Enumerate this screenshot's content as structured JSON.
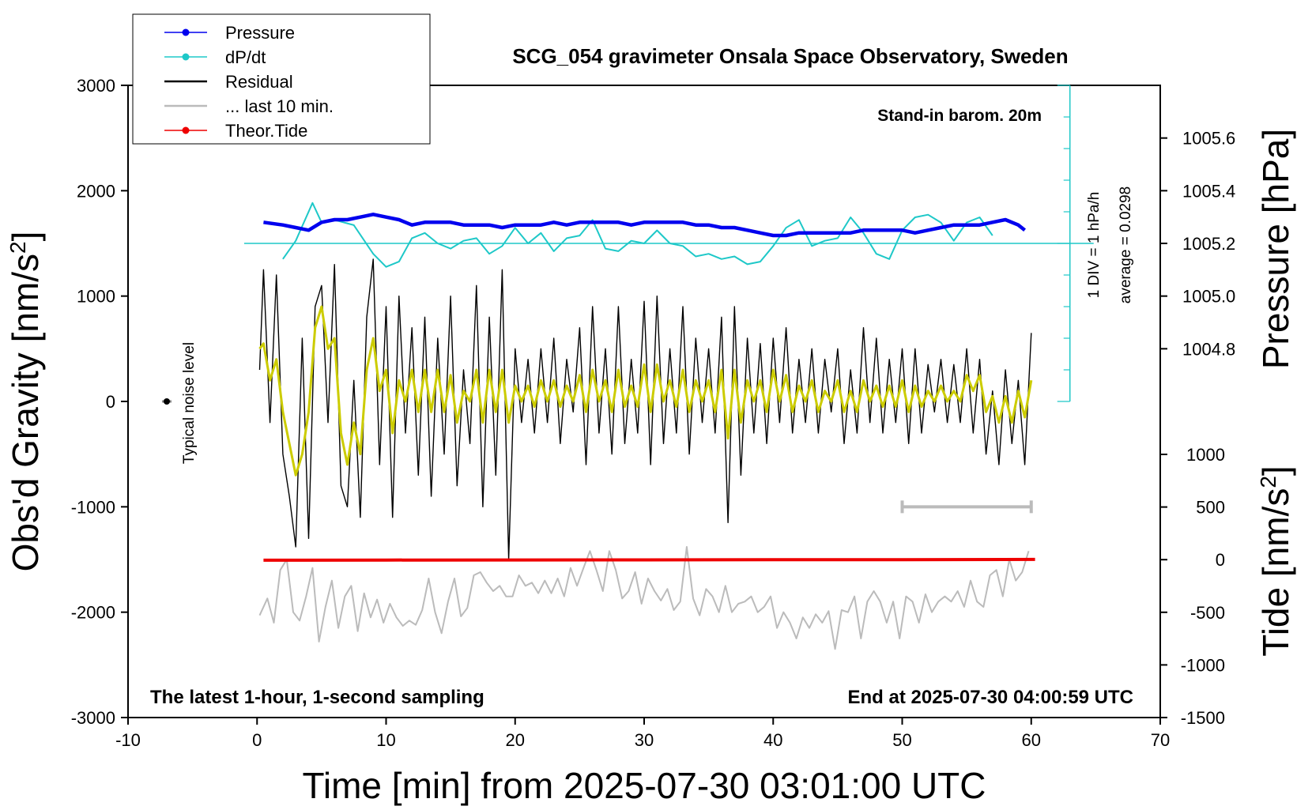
{
  "chart_data": {
    "type": "line",
    "title": "SCG_054 gravimeter Onsala Space Observatory, Sweden",
    "xlabel": "Time [min] from 2025-07-30 03:01:00 UTC",
    "ylabel_left": "Obs'd Gravity [nm/s",
    "ylabel_left_sup": "2",
    "ylabel_left_tail": "]",
    "ylabel_right_pressure": "Pressure [hPa]",
    "ylabel_right_tide": "Tide [nm/s",
    "ylabel_right_tide_sup": "2",
    "ylabel_right_tide_tail": "]",
    "xlim": [
      -10,
      70
    ],
    "ylim": [
      -3000,
      3000
    ],
    "x_ticks": [
      "-10",
      "0",
      "10",
      "20",
      "30",
      "40",
      "50",
      "60",
      "70"
    ],
    "y_ticks": [
      "-3000",
      "-2000",
      "-1000",
      "0",
      "1000",
      "2000",
      "3000"
    ],
    "pressure_ticks": [
      "1004.8",
      "1005.0",
      "1005.2",
      "1005.4",
      "1005.6"
    ],
    "pressure_lim": [
      1004.6,
      1005.8
    ],
    "tide_ticks": [
      "-1500",
      "-1000",
      "-500",
      "0",
      "500",
      "1000"
    ],
    "tide_lim": [
      -1500,
      1000
    ],
    "legend": {
      "placement": "top-left",
      "items": [
        {
          "label": "Pressure",
          "color": "#0000ee",
          "style": "dot-line"
        },
        {
          "label": "dP/dt",
          "color": "#1ec8c8",
          "style": "dot-line"
        },
        {
          "label": "Residual",
          "color": "#000000",
          "style": "line"
        },
        {
          "label": "... last 10 min.",
          "color": "#bbbbbb",
          "style": "line"
        },
        {
          "label": "Theor.Tide",
          "color": "#ee0000",
          "style": "dot-line"
        }
      ]
    },
    "annotations": {
      "barometer": "Stand-in barom. 20m",
      "dpdt_scale": "1 DIV = 1 hPa/h",
      "dpdt_average": "average = 0.0298",
      "noise": "Typical noise level",
      "bottom_left": "The latest 1-hour, 1-second sampling",
      "bottom_right": "End at 2025-07-30 04:00:59 UTC"
    },
    "series": [
      {
        "name": "Pressure",
        "axis": "pressure",
        "color": "#0000ee",
        "x": [
          0.5,
          2,
          3,
          4,
          5,
          6,
          7,
          8,
          9,
          10,
          11,
          12,
          13,
          14,
          15,
          16,
          17,
          18,
          19,
          20,
          21,
          22,
          23,
          24,
          25,
          26,
          27,
          28,
          29,
          30,
          31,
          32,
          33,
          34,
          35,
          36,
          37,
          38,
          39,
          40,
          41,
          42,
          43,
          44,
          45,
          46,
          47,
          48,
          49,
          50,
          51,
          52,
          53,
          54,
          55,
          56,
          57,
          58,
          59,
          59.5
        ],
        "y": [
          1005.28,
          1005.27,
          1005.26,
          1005.25,
          1005.28,
          1005.29,
          1005.29,
          1005.3,
          1005.31,
          1005.3,
          1005.29,
          1005.27,
          1005.28,
          1005.28,
          1005.28,
          1005.27,
          1005.27,
          1005.27,
          1005.26,
          1005.27,
          1005.27,
          1005.27,
          1005.28,
          1005.27,
          1005.28,
          1005.28,
          1005.28,
          1005.28,
          1005.27,
          1005.28,
          1005.28,
          1005.28,
          1005.28,
          1005.27,
          1005.27,
          1005.26,
          1005.26,
          1005.25,
          1005.24,
          1005.23,
          1005.23,
          1005.24,
          1005.24,
          1005.24,
          1005.24,
          1005.24,
          1005.25,
          1005.25,
          1005.25,
          1005.25,
          1005.24,
          1005.25,
          1005.26,
          1005.27,
          1005.27,
          1005.27,
          1005.28,
          1005.29,
          1005.27,
          1005.25
        ]
      },
      {
        "name": "dP/dt",
        "axis": "dpdt",
        "color": "#1ec8c8",
        "x": [
          2,
          3,
          4.3,
          5,
          6,
          7.5,
          9,
          10,
          11,
          12,
          13,
          14,
          15,
          16,
          17,
          18,
          19,
          20,
          21,
          22,
          23,
          24,
          25,
          26,
          27,
          28,
          29,
          30,
          31,
          32,
          33,
          34,
          35,
          36,
          37,
          38,
          39,
          40,
          41,
          42,
          43,
          44,
          45,
          46,
          47,
          48,
          49,
          50,
          51,
          52,
          53,
          54,
          55,
          56,
          57
        ],
        "y": [
          -0.6,
          0.1,
          1.55,
          0.8,
          0.9,
          0.7,
          -0.4,
          -0.9,
          -0.7,
          0.2,
          0.4,
          0.0,
          -0.2,
          0.1,
          0.2,
          -0.4,
          -0.1,
          0.6,
          0.0,
          0.4,
          -0.3,
          0.2,
          0.3,
          0.9,
          -0.2,
          -0.3,
          0.1,
          0.0,
          0.5,
          0.0,
          -0.1,
          -0.5,
          -0.4,
          -0.6,
          -0.5,
          -0.8,
          -0.7,
          -0.1,
          0.6,
          0.9,
          -0.1,
          0.1,
          0.2,
          1.0,
          0.4,
          -0.4,
          -0.6,
          0.5,
          1.0,
          1.1,
          0.8,
          0.1,
          0.8,
          1.0,
          0.3
        ]
      },
      {
        "name": "Residual",
        "axis": "gravity",
        "color": "#000000",
        "x": [
          0.2,
          0.5,
          1,
          1.5,
          2,
          2.5,
          3,
          3.5,
          4,
          4.5,
          5,
          5.5,
          6,
          6.5,
          7,
          7.5,
          8,
          8.5,
          9,
          9.5,
          10,
          10.5,
          11,
          11.5,
          12,
          12.5,
          13,
          13.5,
          14,
          14.5,
          15,
          15.5,
          16,
          16.5,
          17,
          17.5,
          18,
          18.5,
          19,
          19.5,
          20,
          20.5,
          21,
          21.5,
          22,
          22.5,
          23,
          23.5,
          24,
          24.5,
          25,
          25.5,
          26,
          26.5,
          27,
          27.5,
          28,
          28.5,
          29,
          29.5,
          30,
          30.5,
          31,
          31.5,
          32,
          32.5,
          33,
          33.5,
          34,
          34.5,
          35,
          35.5,
          36,
          36.5,
          37,
          37.5,
          38,
          38.5,
          39,
          39.5,
          40,
          40.5,
          41,
          41.5,
          42,
          42.5,
          43,
          43.5,
          44,
          44.5,
          45,
          45.5,
          46,
          46.5,
          47,
          47.5,
          48,
          48.5,
          49,
          49.5,
          50,
          50.5,
          51,
          51.5,
          52,
          52.5,
          53,
          53.5,
          54,
          54.5,
          55,
          55.5,
          56,
          56.5,
          57,
          57.5,
          58,
          58.5,
          59,
          59.5,
          60
        ],
        "y": [
          300,
          1250,
          -200,
          1200,
          -500,
          -900,
          -1380,
          600,
          -1300,
          900,
          1100,
          -200,
          1300,
          -800,
          -1000,
          200,
          -1100,
          800,
          1350,
          -600,
          900,
          -1100,
          1000,
          -300,
          700,
          -700,
          800,
          -900,
          600,
          -500,
          1000,
          -800,
          300,
          -400,
          1100,
          -1000,
          800,
          -700,
          1250,
          -1500,
          500,
          -200,
          400,
          -300,
          500,
          -200,
          600,
          -400,
          400,
          -100,
          700,
          -600,
          900,
          -300,
          500,
          -500,
          900,
          -400,
          400,
          -300,
          950,
          -600,
          1000,
          -400,
          500,
          -300,
          900,
          -500,
          600,
          -200,
          500,
          -300,
          800,
          -1150,
          900,
          -700,
          600,
          -300,
          550,
          -400,
          600,
          -200,
          700,
          -300,
          400,
          -200,
          500,
          -300,
          400,
          -100,
          500,
          -400,
          300,
          -300,
          700,
          -200,
          600,
          -300,
          400,
          -200,
          500,
          -400,
          500,
          -300,
          350,
          -100,
          400,
          -200,
          350,
          -200,
          500,
          -300,
          400,
          -500,
          100,
          -600,
          300,
          -400,
          200,
          -600,
          650
        ]
      },
      {
        "name": "Residual (smoothed)",
        "axis": "gravity",
        "color": "#cccc00",
        "x": [
          0.2,
          0.5,
          1,
          1.5,
          2,
          2.5,
          3,
          3.5,
          4,
          4.5,
          5,
          5.5,
          6,
          6.5,
          7,
          7.5,
          8,
          8.5,
          9,
          9.5,
          10,
          10.5,
          11,
          11.5,
          12,
          12.5,
          13,
          13.5,
          14,
          14.5,
          15,
          15.5,
          16,
          16.5,
          17,
          17.5,
          18,
          18.5,
          19,
          19.5,
          20,
          20.5,
          21,
          21.5,
          22,
          22.5,
          23,
          23.5,
          24,
          24.5,
          25,
          25.5,
          26,
          26.5,
          27,
          27.5,
          28,
          28.5,
          29,
          29.5,
          30,
          30.5,
          31,
          31.5,
          32,
          32.5,
          33,
          33.5,
          34,
          34.5,
          35,
          35.5,
          36,
          36.5,
          37,
          37.5,
          38,
          38.5,
          39,
          39.5,
          40,
          40.5,
          41,
          41.5,
          42,
          42.5,
          43,
          43.5,
          44,
          44.5,
          45,
          45.5,
          46,
          46.5,
          47,
          47.5,
          48,
          48.5,
          49,
          49.5,
          50,
          50.5,
          51,
          51.5,
          52,
          52.5,
          53,
          53.5,
          54,
          54.5,
          55,
          55.5,
          56,
          56.5,
          57,
          57.5,
          58,
          58.5,
          59,
          59.5,
          60
        ],
        "y": [
          500,
          550,
          200,
          400,
          -100,
          -400,
          -700,
          -500,
          -100,
          700,
          900,
          500,
          600,
          -300,
          -600,
          -200,
          -500,
          300,
          600,
          100,
          300,
          -300,
          200,
          0,
          300,
          -100,
          300,
          -100,
          300,
          -100,
          250,
          -200,
          100,
          0,
          300,
          -200,
          300,
          -100,
          300,
          -200,
          150,
          0,
          150,
          -50,
          200,
          0,
          200,
          -50,
          150,
          0,
          250,
          -100,
          300,
          0,
          200,
          -100,
          300,
          -50,
          150,
          -50,
          350,
          -100,
          350,
          0,
          200,
          -50,
          300,
          -100,
          200,
          0,
          200,
          -100,
          300,
          -350,
          300,
          -200,
          200,
          0,
          200,
          -100,
          300,
          0,
          250,
          -100,
          150,
          0,
          200,
          -100,
          100,
          0,
          200,
          -100,
          100,
          -100,
          200,
          0,
          150,
          -50,
          150,
          -50,
          200,
          -100,
          150,
          -50,
          100,
          0,
          150,
          0,
          100,
          0,
          250,
          100,
          250,
          -100,
          50,
          -200,
          50,
          -200,
          100,
          -150,
          200
        ]
      },
      {
        "name": "... last 10 min.",
        "axis": "gravity",
        "color": "#bbbbbb",
        "x": [
          0.2,
          0.8,
          1.3,
          1.8,
          2.3,
          2.8,
          3.3,
          3.8,
          4.3,
          4.8,
          5.3,
          5.8,
          6.3,
          6.8,
          7.3,
          7.8,
          8.3,
          8.8,
          9.3,
          9.8,
          10.3,
          10.8,
          11.3,
          11.8,
          12.3,
          12.8,
          13.3,
          13.8,
          14.3,
          14.8,
          15.3,
          15.8,
          16.3,
          16.8,
          17.3,
          17.8,
          18.3,
          18.8,
          19.3,
          19.8,
          20.3,
          20.8,
          21.3,
          21.8,
          22.3,
          22.8,
          23.3,
          23.8,
          24.3,
          24.8,
          25.3,
          25.8,
          26.3,
          26.8,
          27.3,
          27.8,
          28.3,
          28.8,
          29.3,
          29.8,
          30.3,
          30.8,
          31.3,
          31.8,
          32.3,
          32.8,
          33.3,
          33.8,
          34.3,
          34.8,
          35.3,
          35.8,
          36.3,
          36.8,
          37.3,
          37.8,
          38.3,
          38.8,
          39.3,
          39.8,
          40.3,
          40.8,
          41.3,
          41.8,
          42.3,
          42.8,
          43.3,
          43.8,
          44.3,
          44.8,
          45.3,
          45.8,
          46.3,
          46.8,
          47.3,
          47.8,
          48.3,
          48.8,
          49.3,
          49.8,
          50.3,
          50.8,
          51.3,
          51.8,
          52.3,
          52.8,
          53.3,
          53.8,
          54.3,
          54.8,
          55.3,
          55.8,
          56.3,
          56.8,
          57.3,
          57.8,
          58.3,
          58.8,
          59.3,
          59.8
        ],
        "y": [
          -2030,
          -1870,
          -2100,
          -1600,
          -1500,
          -2000,
          -2080,
          -1850,
          -1580,
          -2280,
          -1950,
          -1700,
          -2150,
          -1850,
          -1750,
          -2180,
          -1820,
          -2050,
          -1880,
          -2100,
          -1920,
          -2050,
          -2130,
          -2080,
          -2120,
          -1980,
          -1680,
          -2000,
          -2200,
          -1900,
          -1680,
          -2040,
          -1960,
          -1650,
          -1620,
          -1720,
          -1800,
          -1750,
          -1850,
          -1850,
          -1650,
          -1750,
          -1720,
          -1820,
          -1700,
          -1820,
          -1680,
          -1850,
          -1580,
          -1750,
          -1580,
          -1420,
          -1600,
          -1800,
          -1420,
          -1600,
          -1870,
          -1800,
          -1620,
          -1920,
          -1680,
          -1800,
          -1890,
          -1780,
          -1980,
          -1900,
          -1380,
          -1870,
          -2030,
          -1780,
          -1850,
          -2000,
          -1750,
          -2000,
          -1920,
          -1900,
          -1850,
          -2000,
          -1950,
          -1850,
          -2150,
          -2000,
          -2100,
          -2250,
          -2050,
          -2150,
          -2020,
          -2100,
          -1990,
          -2350,
          -1980,
          -2000,
          -1850,
          -2250,
          -1900,
          -1800,
          -1900,
          -2100,
          -1900,
          -2250,
          -1850,
          -1900,
          -2100,
          -1830,
          -2000,
          -1900,
          -1850,
          -1900,
          -1800,
          -1950,
          -1700,
          -1900,
          -1950,
          -1650,
          -1600,
          -1850,
          -1500,
          -1700,
          -1620,
          -1420
        ]
      },
      {
        "name": "Theor.Tide",
        "axis": "tide",
        "color": "#ee0000",
        "x": [
          0.5,
          10,
          20,
          30,
          40,
          50,
          60.3
        ],
        "y": [
          -5,
          -4,
          -3,
          -2,
          -1,
          0,
          2
        ]
      }
    ],
    "last10_bar": {
      "x_start": 50,
      "x_end": 60,
      "y": -1000
    },
    "noise_point": {
      "x": -7,
      "y": 0
    },
    "dpdt_zero_line": {
      "y_pressure": 1005.2
    },
    "dpdt_scale_axis": {
      "x": 63
    }
  }
}
